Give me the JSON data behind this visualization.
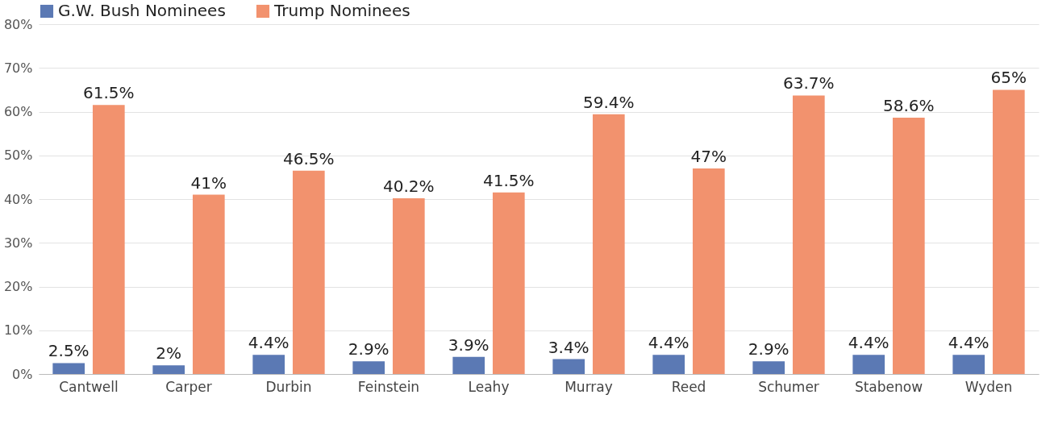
{
  "chart_data": {
    "type": "bar",
    "categories": [
      "Cantwell",
      "Carper",
      "Durbin",
      "Feinstein",
      "Leahy",
      "Murray",
      "Reed",
      "Schumer",
      "Stabenow",
      "Wyden"
    ],
    "series": [
      {
        "name": "G.W. Bush Nominees",
        "color": "#5b79b4",
        "values": [
          2.5,
          2,
          4.4,
          2.9,
          3.9,
          3.4,
          4.4,
          2.9,
          4.4,
          4.4
        ],
        "value_labels": [
          "2.5%",
          "2%",
          "4.4%",
          "2.9%",
          "3.9%",
          "3.4%",
          "4.4%",
          "2.9%",
          "4.4%",
          "4.4%"
        ]
      },
      {
        "name": "Trump Nominees",
        "color": "#f2926e",
        "values": [
          61.5,
          41,
          46.5,
          40.2,
          41.5,
          59.4,
          47,
          63.7,
          58.6,
          65
        ],
        "value_labels": [
          "61.5%",
          "41%",
          "46.5%",
          "40.2%",
          "41.5%",
          "59.4%",
          "47%",
          "63.7%",
          "58.6%",
          "65%"
        ]
      }
    ],
    "ylim": [
      0,
      80
    ],
    "yticks": [
      {
        "value": 0,
        "label": "0%"
      },
      {
        "value": 10,
        "label": "10%"
      },
      {
        "value": 20,
        "label": "20%"
      },
      {
        "value": 30,
        "label": "30%"
      },
      {
        "value": 40,
        "label": "40%"
      },
      {
        "value": 50,
        "label": "50%"
      },
      {
        "value": 60,
        "label": "60%"
      },
      {
        "value": 70,
        "label": "70%"
      },
      {
        "value": 80,
        "label": "80%"
      }
    ],
    "grid": "y",
    "legend": "top left"
  }
}
